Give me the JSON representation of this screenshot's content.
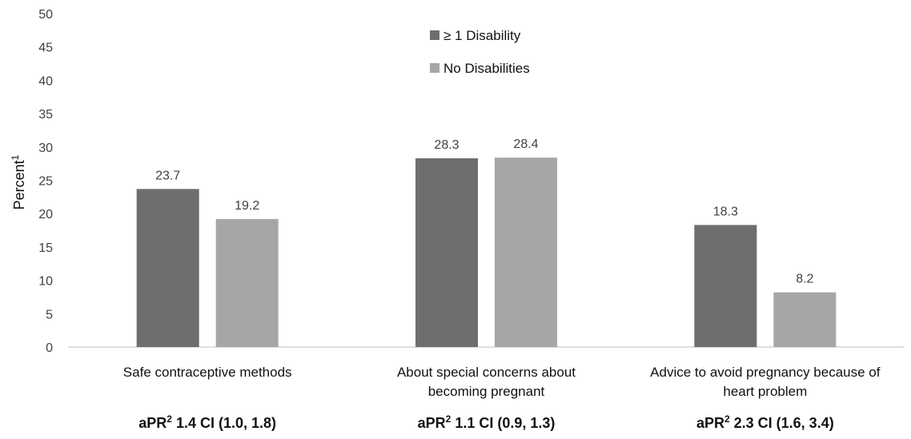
{
  "chart_data": {
    "type": "bar",
    "categories": [
      [
        "Safe contraceptive methods"
      ],
      [
        "About special concerns about",
        "becoming pregnant"
      ],
      [
        "Advice to avoid pregnancy because of",
        "heart problem"
      ]
    ],
    "series": [
      {
        "name": "≥ 1 Disability",
        "values": [
          23.7,
          28.3,
          18.3
        ],
        "color": "#6e6e6e"
      },
      {
        "name": "No Disabilities",
        "values": [
          19.2,
          28.4,
          8.2
        ],
        "color": "#a6a6a6"
      }
    ],
    "ylabel": "Percent",
    "ylabel_sup": "1",
    "ylim": [
      0,
      50
    ],
    "yticks": [
      0,
      5,
      10,
      15,
      20,
      25,
      30,
      35,
      40,
      45,
      50
    ],
    "grid": false,
    "legend_position": "top-center",
    "annotations": [
      {
        "prefix": "aPR",
        "sup": "2",
        "text": "1.4 CI (1.0, 1.8)"
      },
      {
        "prefix": "aPR",
        "sup": "2",
        "text": "1.1 CI (0.9, 1.3)"
      },
      {
        "prefix": "aPR",
        "sup": "2",
        "text": "2.3 CI (1.6, 3.4)"
      }
    ]
  }
}
